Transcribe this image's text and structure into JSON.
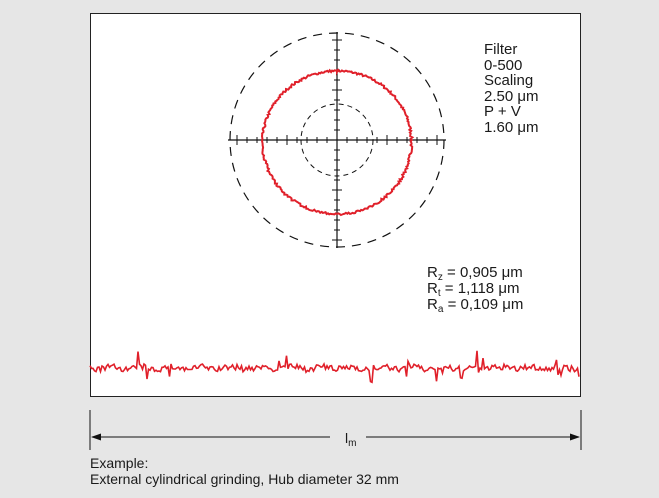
{
  "filter": {
    "label": "Filter",
    "range": "0-500",
    "scaling_label": "Scaling",
    "scaling_value": "2.50 μm",
    "pv_label": "P + V",
    "pv_value": "1.60 μm"
  },
  "roughness": [
    {
      "symbol": "R",
      "sub": "z",
      "value": "= 0,905 μm"
    },
    {
      "symbol": "R",
      "sub": "t",
      "value": "= 1,118 μm"
    },
    {
      "symbol": "R",
      "sub": "a",
      "value": "= 0,109 μm"
    }
  ],
  "length_label": {
    "symbol": "l",
    "sub": "m"
  },
  "caption": {
    "line1": "Example:",
    "line2": "External cylindrical grinding, Hub diameter 32 mm"
  },
  "colors": {
    "trace": "#e0202a",
    "axes": "#111111",
    "background": "#e6e6e6",
    "panel": "#ffffff"
  }
}
